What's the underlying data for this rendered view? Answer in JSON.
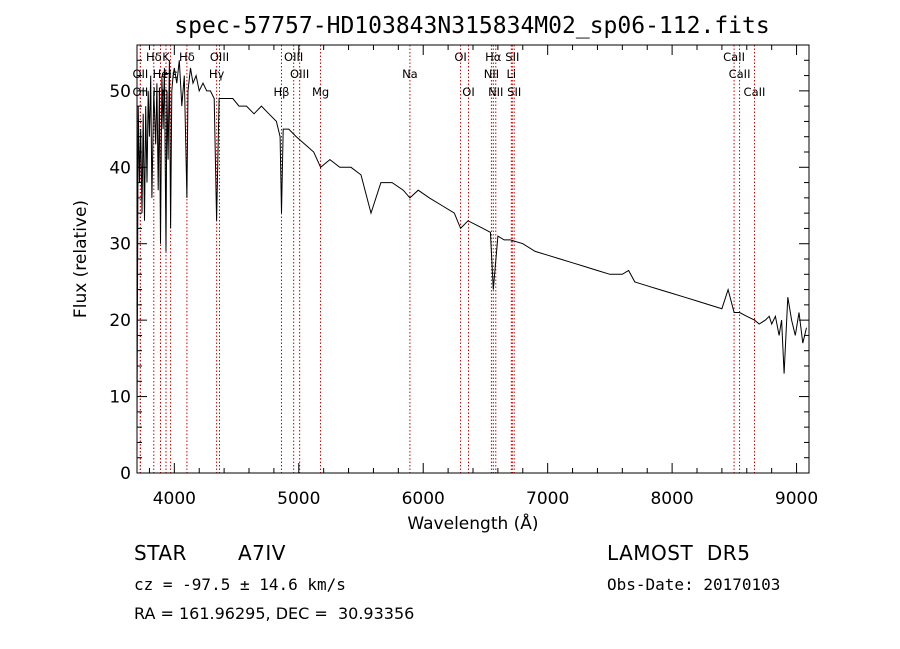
{
  "chart_data": {
    "type": "line",
    "title": "spec-57757-HD103843N315834M02_sp06-112.fits",
    "xlabel": "Wavelength (Å)",
    "ylabel": "Flux (relative)",
    "xlim": [
      3700,
      9100
    ],
    "ylim": [
      0,
      56
    ],
    "xticks": [
      4000,
      5000,
      6000,
      7000,
      8000,
      9000
    ],
    "yticks": [
      0,
      10,
      20,
      30,
      40,
      50
    ],
    "grid": false,
    "line_color": "#000000",
    "marker_color": "#cc0000",
    "series": [
      {
        "x": [
          3700,
          3710,
          3720,
          3730,
          3740,
          3750,
          3760,
          3770,
          3780,
          3790,
          3800,
          3810,
          3820,
          3835,
          3850,
          3860,
          3870,
          3880,
          3889,
          3900,
          3910,
          3920,
          3933,
          3940,
          3950,
          3960,
          3970,
          3980,
          3990,
          4000,
          4020,
          4040,
          4060,
          4080,
          4101,
          4110,
          4130,
          4150,
          4175,
          4200,
          4230,
          4260,
          4290,
          4320,
          4340,
          4360,
          4380,
          4420,
          4470,
          4520,
          4580,
          4640,
          4700,
          4760,
          4820,
          4850,
          4861,
          4875,
          4920,
          4980,
          5050,
          5120,
          5175,
          5250,
          5330,
          5420,
          5500,
          5580,
          5660,
          5750,
          5840,
          5893,
          5960,
          6050,
          6150,
          6250,
          6300,
          6360,
          6420,
          6480,
          6540,
          6563,
          6600,
          6650,
          6700,
          6800,
          6900,
          7000,
          7100,
          7200,
          7300,
          7400,
          7500,
          7600,
          7650,
          7700,
          7800,
          7900,
          8000,
          8100,
          8200,
          8300,
          8400,
          8450,
          8498,
          8542,
          8600,
          8662,
          8700,
          8750,
          8780,
          8800,
          8830,
          8860,
          8880,
          8900,
          8930,
          8960,
          8990,
          9020,
          9050,
          9080
        ],
        "y": [
          6,
          48,
          38,
          45,
          34,
          47,
          33,
          48,
          38,
          50,
          44,
          52,
          36,
          50,
          43,
          51,
          37,
          50,
          30,
          52,
          45,
          53,
          29,
          50,
          41,
          54,
          32,
          50,
          52,
          53,
          51,
          54,
          48,
          52,
          36,
          50,
          53,
          51,
          52,
          50,
          51,
          50,
          50,
          49,
          33,
          49,
          49,
          49,
          49,
          48,
          48,
          47,
          48,
          47,
          46,
          44,
          34,
          45,
          45,
          44,
          43,
          42,
          40,
          41,
          40,
          40,
          39,
          34,
          38,
          38,
          37,
          36,
          37,
          36,
          35,
          34,
          32,
          33,
          32.5,
          32,
          31.5,
          24,
          31,
          30.5,
          30.5,
          30,
          29,
          28.5,
          28,
          27.5,
          27,
          26.5,
          26,
          26,
          26.5,
          25,
          24.5,
          24,
          23.5,
          23,
          22.5,
          22,
          21.5,
          24,
          21,
          21,
          20.5,
          20,
          19.5,
          20,
          20.5,
          19.5,
          20.5,
          18,
          20,
          13,
          23,
          20,
          18,
          21,
          17,
          19
        ]
      }
    ],
    "spectral_lines": [
      {
        "label": "Hδ",
        "x": 3835,
        "row": 1
      },
      {
        "label": "OII",
        "x": 3727,
        "row": 2
      },
      {
        "label": "OII",
        "x": 3727,
        "row": 3
      },
      {
        "label": "K",
        "x": 3933,
        "row": 1
      },
      {
        "label": "He",
        "x": 3889,
        "row": 2
      },
      {
        "label": "Hε",
        "x": 3970,
        "row": 2
      },
      {
        "label": "Hη",
        "x": 3889,
        "row": 3
      },
      {
        "label": "Hδ",
        "x": 4101,
        "row": 1
      },
      {
        "label": "OIII",
        "x": 4363,
        "row": 1
      },
      {
        "label": "Hγ",
        "x": 4340,
        "row": 2
      },
      {
        "label": "Hβ",
        "x": 4861,
        "row": 3
      },
      {
        "label": "OIII",
        "x": 4959,
        "row": 1
      },
      {
        "label": "OIII",
        "x": 5007,
        "row": 2
      },
      {
        "label": "Mg",
        "x": 5175,
        "row": 3
      },
      {
        "label": "Na",
        "x": 5893,
        "row": 2
      },
      {
        "label": "OI",
        "x": 6300,
        "row": 1
      },
      {
        "label": "OI",
        "x": 6364,
        "row": 3
      },
      {
        "label": "Hα",
        "x": 6563,
        "row": 1
      },
      {
        "label": "NII",
        "x": 6548,
        "row": 2
      },
      {
        "label": "NII",
        "x": 6583,
        "row": 3
      },
      {
        "label": "SII",
        "x": 6716,
        "row": 1
      },
      {
        "label": "Li",
        "x": 6708,
        "row": 2
      },
      {
        "label": "SII",
        "x": 6731,
        "row": 3
      },
      {
        "label": "CaII",
        "x": 8498,
        "row": 1
      },
      {
        "label": "CaII",
        "x": 8542,
        "row": 2
      },
      {
        "label": "CaII",
        "x": 8662,
        "row": 3
      }
    ]
  },
  "info": {
    "class_label": "STAR",
    "subclass": "A7IV",
    "survey": "LAMOST  DR5",
    "cz": "cz = -97.5 ± 14.6 km/s",
    "obs_date": "Obs-Date: 20170103",
    "radec": "RA = 161.96295, DEC =  30.93356"
  }
}
